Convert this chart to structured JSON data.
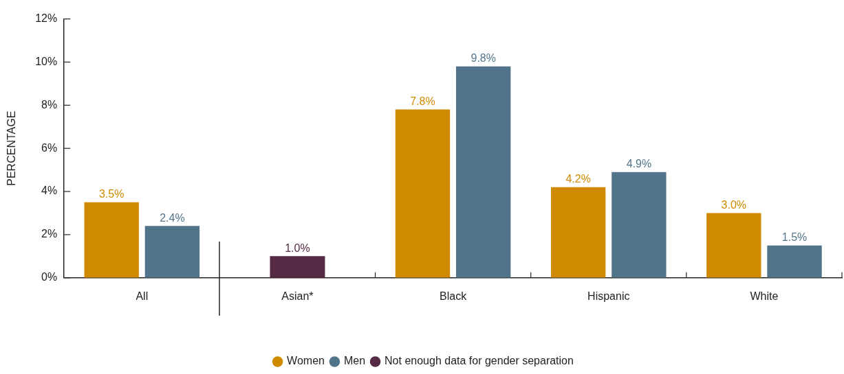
{
  "chart_data": {
    "type": "bar",
    "ylabel": "PERCENTAGE",
    "categories": [
      "All",
      "Asian*",
      "Black",
      "Hispanic",
      "White"
    ],
    "series": [
      {
        "name": "Women",
        "color": "#d08a00",
        "values": [
          3.5,
          null,
          7.8,
          4.2,
          3.0
        ],
        "value_labels": [
          "3.5%",
          null,
          "7.8%",
          "4.2%",
          "3.0%"
        ]
      },
      {
        "name": "Men",
        "color": "#52748a",
        "values": [
          2.4,
          null,
          9.8,
          4.9,
          1.5
        ],
        "value_labels": [
          "2.4%",
          null,
          "9.8%",
          "4.9%",
          "1.5%"
        ]
      },
      {
        "name": "Not enough data for gender separation",
        "color": "#552a45",
        "values": [
          null,
          1.0,
          null,
          null,
          null
        ],
        "value_labels": [
          null,
          "1.0%",
          null,
          null,
          null
        ]
      }
    ],
    "ylim": [
      0,
      12
    ],
    "yticks": [
      {
        "value": 0,
        "label": "0%"
      },
      {
        "value": 2,
        "label": "2%"
      },
      {
        "value": 4,
        "label": "4%"
      },
      {
        "value": 6,
        "label": "6%"
      },
      {
        "value": 8,
        "label": "8%"
      },
      {
        "value": 10,
        "label": "10%"
      },
      {
        "value": 12,
        "label": "12%"
      }
    ],
    "legend": "bottom"
  }
}
